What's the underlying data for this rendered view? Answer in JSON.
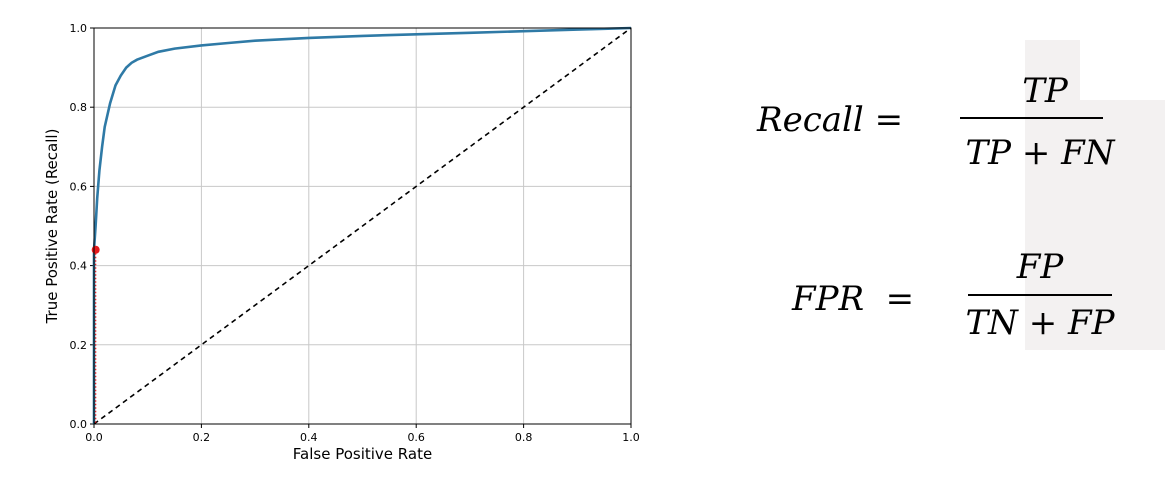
{
  "chart_data": {
    "type": "line",
    "title": "",
    "xlabel": "False Positive Rate",
    "ylabel": "True Positive Rate (Recall)",
    "xlim": [
      0.0,
      1.0
    ],
    "ylim": [
      0.0,
      1.0
    ],
    "xticks": [
      "0.0",
      "0.2",
      "0.4",
      "0.6",
      "0.8",
      "1.0"
    ],
    "yticks": [
      "0.0",
      "0.2",
      "0.4",
      "0.6",
      "0.8",
      "1.0"
    ],
    "grid": true,
    "legend": "none",
    "series": [
      {
        "kind": "roc-curve",
        "color": "#2f7aa6",
        "x": [
          0.0,
          0.0,
          0.003,
          0.006,
          0.01,
          0.015,
          0.02,
          0.03,
          0.04,
          0.05,
          0.06,
          0.07,
          0.08,
          0.1,
          0.12,
          0.15,
          0.2,
          0.25,
          0.3,
          0.4,
          0.5,
          0.6,
          0.7,
          0.8,
          0.9,
          0.95,
          1.0
        ],
        "y": [
          0.0,
          0.44,
          0.5,
          0.57,
          0.64,
          0.7,
          0.75,
          0.81,
          0.855,
          0.88,
          0.9,
          0.912,
          0.92,
          0.93,
          0.94,
          0.948,
          0.956,
          0.962,
          0.968,
          0.975,
          0.98,
          0.984,
          0.988,
          0.992,
          0.996,
          0.998,
          1.0
        ]
      },
      {
        "kind": "random-classifier",
        "color": "#000000",
        "dashed": true,
        "x": [
          0.0,
          1.0
        ],
        "y": [
          0.0,
          1.0
        ]
      }
    ],
    "marker": {
      "x": 0.005,
      "y": 0.44,
      "color": "#e41a1c",
      "dotted_drop_to_axis": true
    }
  },
  "formulas": {
    "recall": {
      "lhs": "Recall =",
      "numerator": "TP",
      "denominator": "TP + FN"
    },
    "fpr": {
      "lhs": "FPR  =",
      "numerator": "FP",
      "denominator": "TN + FP"
    }
  }
}
